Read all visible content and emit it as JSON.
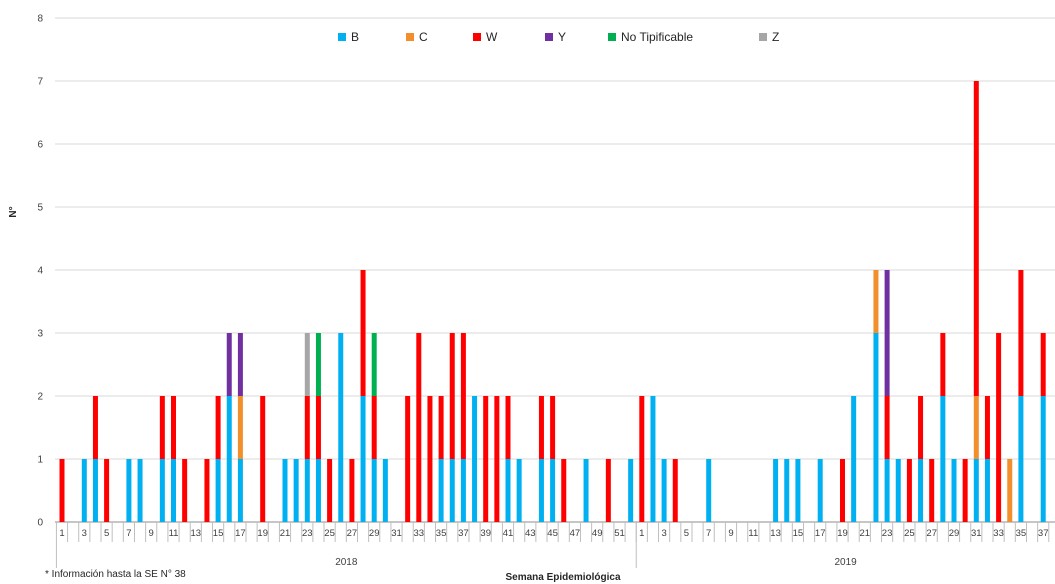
{
  "chart_data": {
    "type": "bar",
    "stacked": true,
    "title": "",
    "xlabel": "Semana Epidemiológica",
    "ylabel": "N°",
    "ylim": [
      0,
      8
    ],
    "yticks": [
      "0",
      "1",
      "2",
      "3",
      "4",
      "5",
      "6",
      "7",
      "8"
    ],
    "grid": true,
    "legend_position": "top",
    "note": "* Información hasta la  SE N° 38",
    "years": [
      {
        "label": "2018",
        "weeks": 52
      },
      {
        "label": "2019",
        "weeks": 38
      }
    ],
    "series": [
      {
        "name": "B",
        "color": "#00b0f0"
      },
      {
        "name": "C",
        "color": "#f28e2b"
      },
      {
        "name": "W",
        "color": "#ff0000"
      },
      {
        "name": "Y",
        "color": "#7030a0"
      },
      {
        "name": "No Tipificable",
        "color": "#00b050"
      },
      {
        "name": "Z",
        "color": "#a6a6a6"
      }
    ],
    "stack_order": [
      "B",
      "C",
      "W",
      "Z",
      "Y",
      "No Tipificable"
    ],
    "data": [
      {
        "year": "2018",
        "week": 1,
        "W": 1
      },
      {
        "year": "2018",
        "week": 3,
        "B": 1
      },
      {
        "year": "2018",
        "week": 4,
        "B": 1,
        "W": 1
      },
      {
        "year": "2018",
        "week": 5,
        "W": 1
      },
      {
        "year": "2018",
        "week": 7,
        "B": 1
      },
      {
        "year": "2018",
        "week": 8,
        "B": 1
      },
      {
        "year": "2018",
        "week": 10,
        "B": 1,
        "W": 1
      },
      {
        "year": "2018",
        "week": 11,
        "B": 1,
        "W": 1
      },
      {
        "year": "2018",
        "week": 12,
        "W": 1
      },
      {
        "year": "2018",
        "week": 14,
        "W": 1
      },
      {
        "year": "2018",
        "week": 15,
        "B": 1,
        "W": 1
      },
      {
        "year": "2018",
        "week": 16,
        "B": 2,
        "Y": 1
      },
      {
        "year": "2018",
        "week": 17,
        "B": 1,
        "C": 1,
        "Y": 1
      },
      {
        "year": "2018",
        "week": 19,
        "W": 2
      },
      {
        "year": "2018",
        "week": 21,
        "B": 1
      },
      {
        "year": "2018",
        "week": 22,
        "B": 1
      },
      {
        "year": "2018",
        "week": 23,
        "B": 1,
        "W": 1,
        "Z": 1
      },
      {
        "year": "2018",
        "week": 24,
        "B": 1,
        "W": 1,
        "No Tipificable": 1
      },
      {
        "year": "2018",
        "week": 25,
        "W": 1
      },
      {
        "year": "2018",
        "week": 26,
        "B": 3
      },
      {
        "year": "2018",
        "week": 27,
        "W": 1
      },
      {
        "year": "2018",
        "week": 28,
        "B": 2,
        "W": 2
      },
      {
        "year": "2018",
        "week": 29,
        "B": 1,
        "W": 1,
        "No Tipificable": 1
      },
      {
        "year": "2018",
        "week": 30,
        "B": 1
      },
      {
        "year": "2018",
        "week": 32,
        "W": 2
      },
      {
        "year": "2018",
        "week": 33,
        "W": 3
      },
      {
        "year": "2018",
        "week": 34,
        "W": 2
      },
      {
        "year": "2018",
        "week": 35,
        "B": 1,
        "W": 1
      },
      {
        "year": "2018",
        "week": 36,
        "B": 1,
        "W": 2
      },
      {
        "year": "2018",
        "week": 37,
        "B": 1,
        "W": 2
      },
      {
        "year": "2018",
        "week": 38,
        "B": 2
      },
      {
        "year": "2018",
        "week": 39,
        "W": 2
      },
      {
        "year": "2018",
        "week": 40,
        "W": 2
      },
      {
        "year": "2018",
        "week": 41,
        "B": 1,
        "W": 1
      },
      {
        "year": "2018",
        "week": 42,
        "B": 1
      },
      {
        "year": "2018",
        "week": 44,
        "B": 1,
        "W": 1
      },
      {
        "year": "2018",
        "week": 45,
        "B": 1,
        "W": 1
      },
      {
        "year": "2018",
        "week": 46,
        "W": 1
      },
      {
        "year": "2018",
        "week": 48,
        "B": 1
      },
      {
        "year": "2018",
        "week": 50,
        "W": 1
      },
      {
        "year": "2018",
        "week": 52,
        "B": 1
      },
      {
        "year": "2019",
        "week": 1,
        "W": 2
      },
      {
        "year": "2019",
        "week": 2,
        "B": 2
      },
      {
        "year": "2019",
        "week": 3,
        "B": 1
      },
      {
        "year": "2019",
        "week": 4,
        "W": 1
      },
      {
        "year": "2019",
        "week": 7,
        "B": 1
      },
      {
        "year": "2019",
        "week": 13,
        "B": 1
      },
      {
        "year": "2019",
        "week": 14,
        "B": 1
      },
      {
        "year": "2019",
        "week": 15,
        "B": 1
      },
      {
        "year": "2019",
        "week": 17,
        "B": 1
      },
      {
        "year": "2019",
        "week": 19,
        "W": 1
      },
      {
        "year": "2019",
        "week": 20,
        "B": 2
      },
      {
        "year": "2019",
        "week": 22,
        "B": 3,
        "C": 1
      },
      {
        "year": "2019",
        "week": 23,
        "B": 1,
        "W": 1,
        "Y": 2
      },
      {
        "year": "2019",
        "week": 24,
        "B": 1
      },
      {
        "year": "2019",
        "week": 25,
        "W": 1
      },
      {
        "year": "2019",
        "week": 26,
        "B": 1,
        "W": 1
      },
      {
        "year": "2019",
        "week": 27,
        "W": 1
      },
      {
        "year": "2019",
        "week": 28,
        "B": 2,
        "W": 1
      },
      {
        "year": "2019",
        "week": 29,
        "B": 1
      },
      {
        "year": "2019",
        "week": 30,
        "W": 1
      },
      {
        "year": "2019",
        "week": 31,
        "B": 1,
        "C": 1,
        "W": 5
      },
      {
        "year": "2019",
        "week": 32,
        "B": 1,
        "W": 1
      },
      {
        "year": "2019",
        "week": 33,
        "W": 3
      },
      {
        "year": "2019",
        "week": 34,
        "C": 1
      },
      {
        "year": "2019",
        "week": 35,
        "B": 2,
        "W": 2
      },
      {
        "year": "2019",
        "week": 37,
        "B": 2,
        "W": 1
      }
    ]
  }
}
